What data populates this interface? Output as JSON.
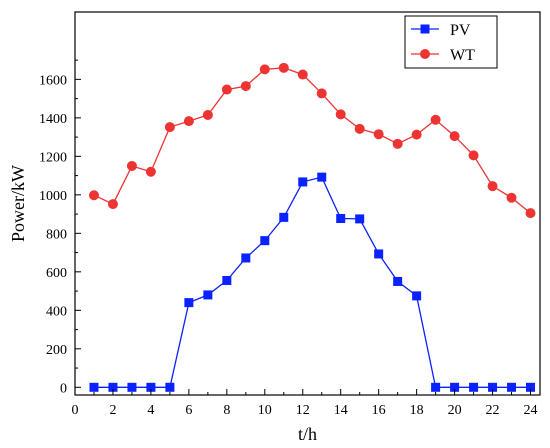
{
  "chart_data": {
    "type": "line",
    "xlabel": "t/h",
    "ylabel": "Power/kW",
    "xlim": [
      0,
      24.5
    ],
    "ylim": [
      -40,
      1950
    ],
    "xticks": [
      0,
      2,
      4,
      6,
      8,
      10,
      12,
      14,
      16,
      18,
      20,
      22,
      24
    ],
    "yticks": [
      0,
      200,
      400,
      600,
      800,
      1000,
      1200,
      1400,
      1600
    ],
    "legend_position": "top-right",
    "x": [
      1,
      2,
      3,
      4,
      5,
      6,
      7,
      8,
      9,
      10,
      11,
      12,
      13,
      14,
      15,
      16,
      17,
      18,
      19,
      20,
      21,
      22,
      23,
      24
    ],
    "series": [
      {
        "name": "PV",
        "color": "#0a22ff",
        "marker": "square",
        "values": [
          0,
          0,
          0,
          0,
          0,
          440,
          480,
          555,
          672,
          762,
          883,
          1067,
          1092,
          877,
          875,
          693,
          550,
          475,
          0,
          0,
          0,
          0,
          0,
          0
        ]
      },
      {
        "name": "WT",
        "color": "#ee3333",
        "marker": "circle",
        "values": [
          998,
          952,
          1150,
          1120,
          1352,
          1383,
          1415,
          1547,
          1565,
          1652,
          1660,
          1625,
          1527,
          1418,
          1343,
          1315,
          1265,
          1313,
          1390,
          1305,
          1205,
          1045,
          985,
          905
        ]
      }
    ]
  }
}
